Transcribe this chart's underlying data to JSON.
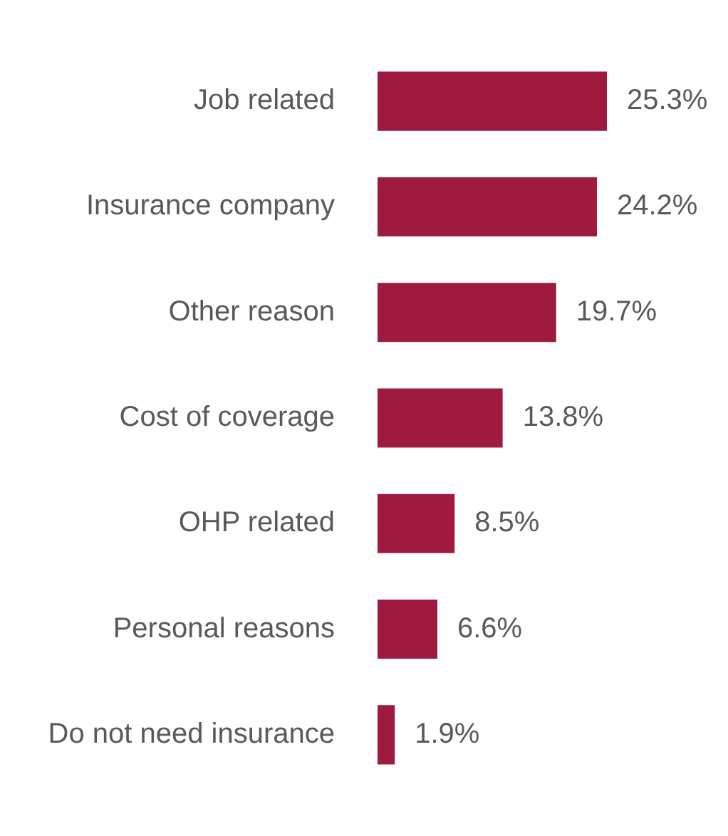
{
  "chart_data": {
    "type": "bar",
    "orientation": "horizontal",
    "categories": [
      "Job related",
      "Insurance company",
      "Other reason",
      "Cost of coverage",
      "OHP related",
      "Personal reasons",
      "Do not need insurance"
    ],
    "values": [
      25.3,
      24.2,
      19.7,
      13.8,
      8.5,
      6.6,
      1.9
    ],
    "value_labels": [
      "25.3%",
      "24.2%",
      "19.7%",
      "13.8%",
      "8.5%",
      "6.6%",
      "1.9%"
    ],
    "color": "#9e1a3e",
    "tick_labels": "y"
  }
}
